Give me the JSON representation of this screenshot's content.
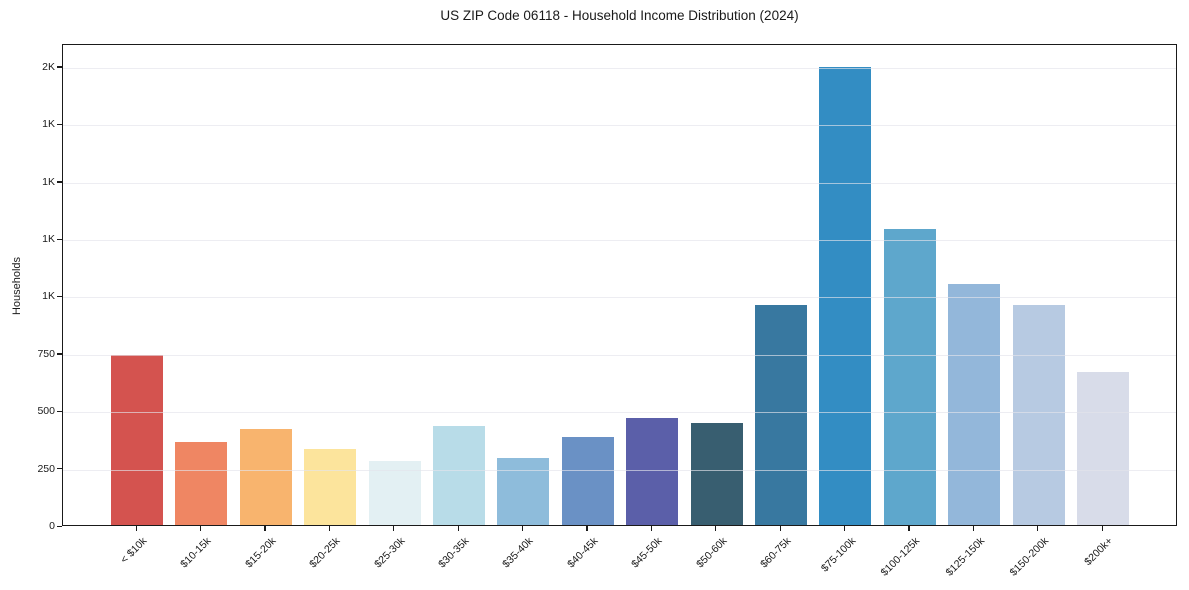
{
  "chart_data": {
    "type": "bar",
    "title": "US ZIP Code 06118 - Household Income Distribution (2024)",
    "xlabel": "",
    "ylabel": "Households",
    "categories": [
      "< $10k",
      "$10-15k",
      "$15-20k",
      "$20-25k",
      "$25-30k",
      "$30-35k",
      "$35-40k",
      "$40-45k",
      "$45-50k",
      "$50-60k",
      "$60-75k",
      "$75-100k",
      "$100-125k",
      "$125-150k",
      "$150-200k",
      "$200k+"
    ],
    "values": [
      740,
      360,
      420,
      330,
      280,
      430,
      290,
      385,
      465,
      445,
      960,
      1995,
      1290,
      1050,
      960,
      665
    ],
    "bar_colors": [
      "#d4534f",
      "#ef8663",
      "#f8b46e",
      "#fce49c",
      "#e3f0f3",
      "#b8dce8",
      "#8ebcdb",
      "#6a91c5",
      "#5b5fa9",
      "#385e70",
      "#3878a0",
      "#338dc3",
      "#5ea7cc",
      "#93b7da",
      "#b7cae2",
      "#d8dce9"
    ],
    "ylim": [
      0,
      2100
    ],
    "yticks": [
      {
        "value": 0,
        "label": "0"
      },
      {
        "value": 250,
        "label": "250"
      },
      {
        "value": 500,
        "label": "500"
      },
      {
        "value": 750,
        "label": "750"
      },
      {
        "value": 1000,
        "label": "1K"
      },
      {
        "value": 1250,
        "label": "1K"
      },
      {
        "value": 1500,
        "label": "1K"
      },
      {
        "value": 1750,
        "label": "1K"
      },
      {
        "value": 2000,
        "label": "2K"
      }
    ],
    "grid": "horizontal",
    "legend": "none",
    "background": "#ffffff",
    "plot_border": "#1a1a1a"
  }
}
